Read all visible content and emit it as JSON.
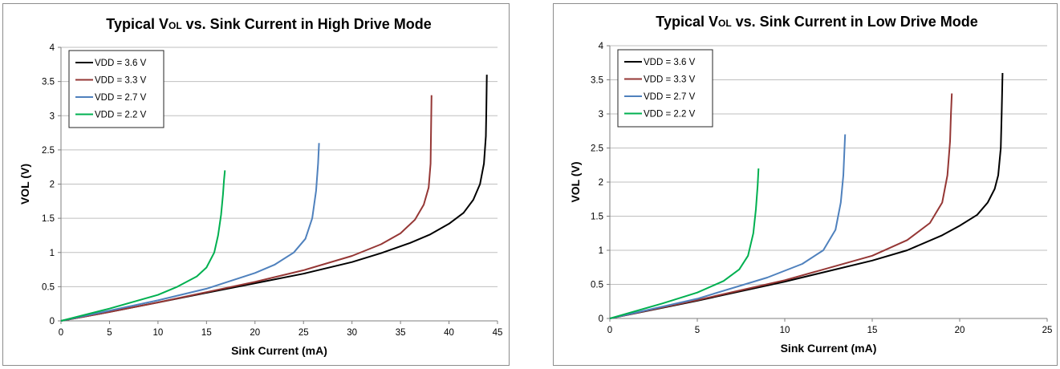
{
  "chart_data": [
    {
      "type": "line",
      "title_main": "Typical V",
      "title_sub": "OL",
      "title_rest": " vs. Sink Current in High Drive Mode",
      "xlabel": "Sink Current (mA)",
      "ylabel": "VOL (V)",
      "xlim": [
        0,
        45
      ],
      "ylim": [
        0,
        4
      ],
      "xticks": [
        0,
        5,
        10,
        15,
        20,
        25,
        30,
        35,
        40,
        45
      ],
      "yticks": [
        0,
        0.5,
        1,
        1.5,
        2,
        2.5,
        3,
        3.5,
        4
      ],
      "grid": "horizontal",
      "legend": "top-left",
      "series": [
        {
          "name": "VDD = 3.6 V",
          "color": "#000000",
          "x": [
            0,
            5,
            10,
            15,
            20,
            25,
            30,
            33,
            36,
            38,
            40,
            41.5,
            42.5,
            43.2,
            43.6,
            43.8,
            43.85,
            43.9
          ],
          "y": [
            0,
            0.13,
            0.27,
            0.41,
            0.55,
            0.69,
            0.86,
            0.99,
            1.14,
            1.26,
            1.42,
            1.58,
            1.77,
            2.0,
            2.3,
            2.7,
            3.1,
            3.6
          ]
        },
        {
          "name": "VDD = 3.3 V",
          "color": "#953735",
          "x": [
            0,
            5,
            10,
            15,
            20,
            25,
            30,
            33,
            35,
            36.5,
            37.4,
            37.9,
            38.1,
            38.15,
            38.2
          ],
          "y": [
            0,
            0.13,
            0.27,
            0.42,
            0.57,
            0.74,
            0.95,
            1.12,
            1.28,
            1.48,
            1.7,
            1.95,
            2.3,
            2.8,
            3.3
          ]
        },
        {
          "name": "VDD = 2.7 V",
          "color": "#4f81bd",
          "x": [
            0,
            5,
            10,
            15,
            20,
            22,
            24,
            25.2,
            25.9,
            26.3,
            26.5,
            26.6
          ],
          "y": [
            0,
            0.15,
            0.3,
            0.47,
            0.7,
            0.82,
            1.0,
            1.2,
            1.5,
            1.9,
            2.3,
            2.6
          ]
        },
        {
          "name": "VDD = 2.2 V",
          "color": "#00b050",
          "x": [
            0,
            5,
            10,
            12,
            14,
            15,
            15.8,
            16.2,
            16.5,
            16.7,
            16.8,
            16.9
          ],
          "y": [
            0,
            0.18,
            0.38,
            0.5,
            0.65,
            0.78,
            1.0,
            1.25,
            1.55,
            1.85,
            2.05,
            2.2
          ]
        }
      ]
    },
    {
      "type": "line",
      "title_main": "Typical V",
      "title_sub": "OL",
      "title_rest": " vs. Sink Current in Low Drive Mode",
      "xlabel": "Sink Current (mA)",
      "ylabel": "VOL (V)",
      "xlim": [
        0,
        25
      ],
      "ylim": [
        0,
        4
      ],
      "xticks": [
        0,
        5,
        10,
        15,
        20,
        25
      ],
      "yticks": [
        0,
        0.5,
        1,
        1.5,
        2,
        2.5,
        3,
        3.5,
        4
      ],
      "grid": "horizontal",
      "legend": "top-left",
      "series": [
        {
          "name": "VDD = 3.6 V",
          "color": "#000000",
          "x": [
            0,
            5,
            10,
            15,
            17,
            19,
            20,
            21,
            21.6,
            22,
            22.2,
            22.35,
            22.4,
            22.45
          ],
          "y": [
            0,
            0.26,
            0.54,
            0.85,
            1.0,
            1.22,
            1.36,
            1.52,
            1.7,
            1.9,
            2.1,
            2.5,
            3.0,
            3.6
          ]
        },
        {
          "name": "VDD = 3.3 V",
          "color": "#953735",
          "x": [
            0,
            5,
            10,
            15,
            17,
            18.3,
            19,
            19.3,
            19.45,
            19.5,
            19.55
          ],
          "y": [
            0,
            0.27,
            0.56,
            0.92,
            1.15,
            1.4,
            1.7,
            2.1,
            2.6,
            3.0,
            3.3
          ]
        },
        {
          "name": "VDD = 2.7 V",
          "color": "#4f81bd",
          "x": [
            0,
            5,
            9,
            11,
            12.2,
            12.9,
            13.2,
            13.35,
            13.4,
            13.45
          ],
          "y": [
            0,
            0.29,
            0.6,
            0.8,
            1.0,
            1.3,
            1.7,
            2.1,
            2.4,
            2.7
          ]
        },
        {
          "name": "VDD = 2.2 V",
          "color": "#00b050",
          "x": [
            0,
            3,
            5,
            6.5,
            7.4,
            7.9,
            8.2,
            8.35,
            8.45,
            8.5
          ],
          "y": [
            0,
            0.22,
            0.38,
            0.55,
            0.72,
            0.92,
            1.25,
            1.6,
            1.95,
            2.2
          ]
        }
      ]
    }
  ]
}
